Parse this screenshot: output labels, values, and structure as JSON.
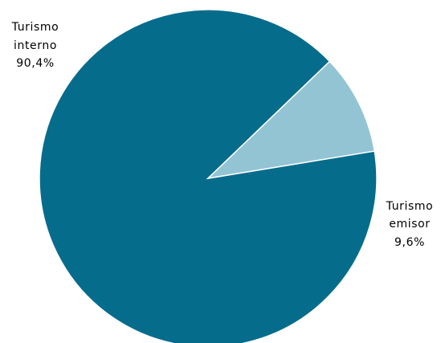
{
  "chart_data": {
    "type": "pie",
    "title": "",
    "slices": [
      {
        "name": "Turismo interno",
        "label_lines": [
          "Turismo",
          "interno",
          "90,4%"
        ],
        "value": 90.4,
        "color": "#066c8c"
      },
      {
        "name": "Turismo emisor",
        "label_lines": [
          "Turismo",
          "emisor",
          "9,6%"
        ],
        "value": 9.6,
        "color": "#93c4d4"
      }
    ]
  }
}
